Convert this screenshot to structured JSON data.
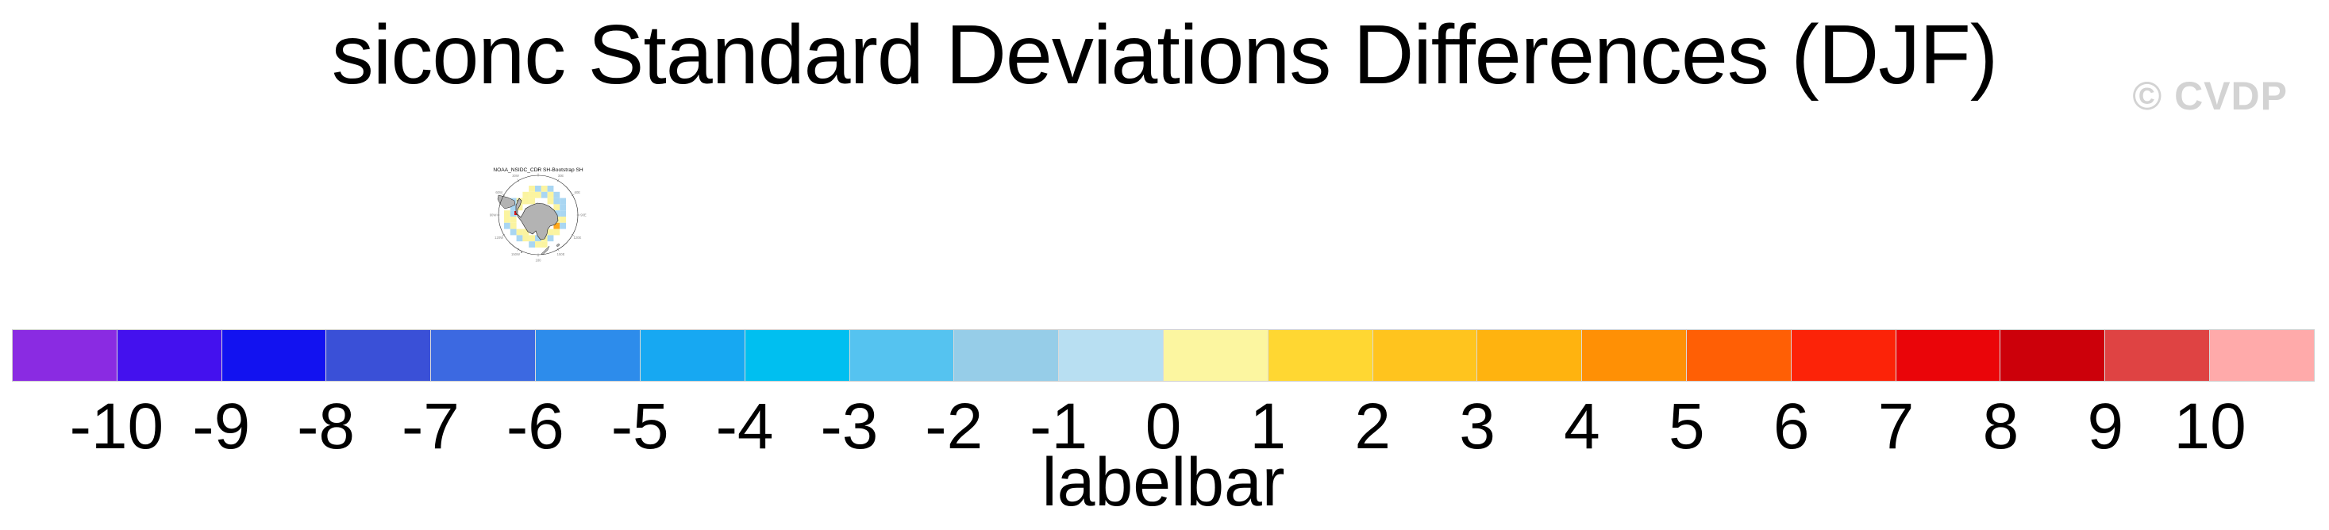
{
  "title": "siconc Standard Deviations Differences (DJF)",
  "watermark": "© CVDP",
  "map_panel": {
    "title": "NOAA_NSIDC_CDR SH-Bootstrap SH",
    "projection": "south polar stereographic",
    "lon_labels": [
      "0",
      "30E",
      "60E",
      "90E",
      "120E",
      "150E",
      "180",
      "150W",
      "120W",
      "90W",
      "60W",
      "30W"
    ],
    "land_color": "#b3b3b3",
    "coast_color": "#1a1a1a",
    "cell_colors": {
      "Y": "#FBF4A0",
      "B": "#A9D6F2",
      "O": "#FFA81C",
      "R": "#DD1515"
    },
    "cells": [
      [
        4,
        0,
        "Y"
      ],
      [
        5,
        0,
        "B"
      ],
      [
        6,
        0,
        "Y"
      ],
      [
        7,
        0,
        "B"
      ],
      [
        3,
        1,
        "Y"
      ],
      [
        4,
        1,
        "Y"
      ],
      [
        5,
        1,
        "Y"
      ],
      [
        6,
        1,
        "B"
      ],
      [
        7,
        1,
        "Y"
      ],
      [
        8,
        1,
        "B"
      ],
      [
        1,
        2,
        "B"
      ],
      [
        2,
        2,
        "Y"
      ],
      [
        3,
        2,
        "Y"
      ],
      [
        4,
        2,
        "Y"
      ],
      [
        7,
        2,
        "Y"
      ],
      [
        8,
        2,
        "B"
      ],
      [
        9,
        2,
        "B"
      ],
      [
        1,
        3,
        "B"
      ],
      [
        2,
        3,
        "Y"
      ],
      [
        8,
        3,
        "Y"
      ],
      [
        9,
        3,
        "B"
      ],
      [
        0,
        4,
        "Y"
      ],
      [
        1,
        4,
        "B"
      ],
      [
        8,
        4,
        "B"
      ],
      [
        9,
        4,
        "B"
      ],
      [
        0,
        5,
        "Y"
      ],
      [
        1,
        5,
        "Y"
      ],
      [
        8,
        5,
        "Y"
      ],
      [
        9,
        5,
        "Y"
      ],
      [
        0,
        6,
        "B"
      ],
      [
        1,
        6,
        "Y"
      ],
      [
        8,
        6,
        "O"
      ],
      [
        9,
        6,
        "B"
      ],
      [
        1,
        7,
        "B"
      ],
      [
        2,
        7,
        "Y"
      ],
      [
        3,
        7,
        "Y"
      ],
      [
        7,
        7,
        "Y"
      ],
      [
        8,
        7,
        "Y"
      ],
      [
        2,
        8,
        "B"
      ],
      [
        3,
        8,
        "Y"
      ],
      [
        4,
        8,
        "Y"
      ],
      [
        5,
        8,
        "B"
      ],
      [
        6,
        8,
        "Y"
      ],
      [
        7,
        8,
        "B"
      ],
      [
        4,
        9,
        "B"
      ],
      [
        5,
        9,
        "Y"
      ],
      [
        6,
        9,
        "Y"
      ]
    ],
    "red_cell": [
      70,
      95,
      3.5,
      5
    ]
  },
  "chart_data": {
    "type": "heatmap",
    "title": "siconc Standard Deviations Differences (DJF)",
    "variable": "siconc",
    "season": "DJF",
    "panels": [
      "NOAA_NSIDC_CDR SH-Bootstrap SH"
    ],
    "legend_position": "bottom",
    "colorbar": {
      "title": "labelbar",
      "tick_labels": [
        "-10",
        "-9",
        "-8",
        "-7",
        "-6",
        "-5",
        "-4",
        "-3",
        "-2",
        "-1",
        "0",
        "1",
        "2",
        "3",
        "4",
        "5",
        "6",
        "7",
        "8",
        "9",
        "10"
      ],
      "levels": [
        -10,
        -9,
        -8,
        -7,
        -6,
        -5,
        -4,
        -3,
        -2,
        -1,
        0,
        1,
        2,
        3,
        4,
        5,
        6,
        7,
        8,
        9,
        10
      ],
      "colors": [
        "#8A2BE2",
        "#4411EE",
        "#1212F0",
        "#3A50D7",
        "#3C69E1",
        "#2D8CEB",
        "#17A8F2",
        "#00BFF0",
        "#55C3F0",
        "#96CDE8",
        "#B8DFF2",
        "#FCF6A0",
        "#FFD732",
        "#FFC41E",
        "#FFB30F",
        "#FF9005",
        "#FF5F05",
        "#FC2308",
        "#EA0509",
        "#CC000A",
        "#DF4343",
        "#FFAAAA"
      ],
      "note": "ticks sit at box boundaries; outer boxes are < -10 and > 10"
    }
  }
}
